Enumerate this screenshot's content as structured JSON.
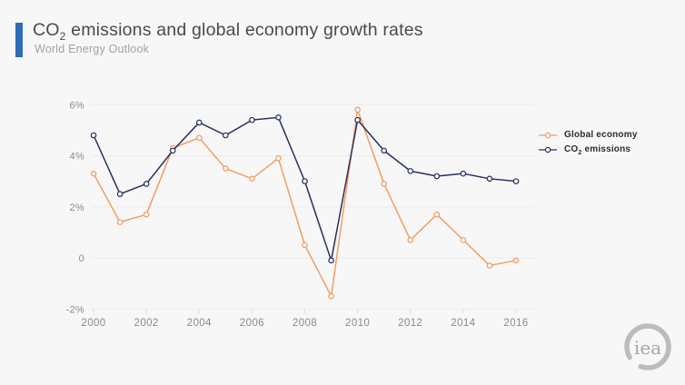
{
  "header": {
    "title": {
      "pre": "CO",
      "sub": "2",
      "post": " emissions and global economy growth rates"
    },
    "subtitle": "World Energy Outlook"
  },
  "legend": {
    "items": [
      {
        "pre": "Global economy",
        "sub": "",
        "post": ""
      },
      {
        "pre": "CO",
        "sub": "2",
        "post": " emissions"
      }
    ]
  },
  "logo": {
    "text": "iea"
  },
  "colors": {
    "accent_bar": "#2f6cb3",
    "global_economy": "#f49d61",
    "co2_emissions": "#272f5e",
    "grid": "#ebebeb",
    "tick": "#dcdcdc",
    "axis_text": "#8a8a8a",
    "background": "#f7f7f7"
  },
  "chart_data": {
    "type": "line",
    "title": "CO₂ emissions and global economy growth rates",
    "subtitle": "World Energy Outlook",
    "x": [
      2000,
      2001,
      2002,
      2003,
      2004,
      2005,
      2006,
      2007,
      2008,
      2009,
      2010,
      2011,
      2012,
      2013,
      2014,
      2015,
      2016
    ],
    "series": [
      {
        "name": "Global economy",
        "color": "#f49d61",
        "values": [
          3.3,
          1.4,
          1.7,
          4.3,
          4.7,
          3.5,
          3.1,
          3.9,
          0.5,
          -1.5,
          5.8,
          2.9,
          0.7,
          1.7,
          0.7,
          -0.3,
          -0.1
        ]
      },
      {
        "name": "CO₂ emissions",
        "color": "#272f5e",
        "values": [
          4.8,
          2.5,
          2.9,
          4.2,
          5.3,
          4.8,
          5.4,
          5.5,
          3.0,
          -0.1,
          5.4,
          4.2,
          3.4,
          3.2,
          3.3,
          3.1,
          3.0
        ]
      }
    ],
    "ylim": [
      -2,
      6
    ],
    "yticks": [
      {
        "value": 6,
        "label": "6%"
      },
      {
        "value": 4,
        "label": "4%"
      },
      {
        "value": 2,
        "label": "2%"
      },
      {
        "value": 0,
        "label": "0"
      },
      {
        "value": -2,
        "label": "-2%"
      }
    ],
    "xticks": [
      2000,
      2002,
      2004,
      2006,
      2008,
      2010,
      2012,
      2014,
      2016
    ],
    "grid": "horizontal-only",
    "legend_position": "right",
    "marker": "open-circle"
  }
}
